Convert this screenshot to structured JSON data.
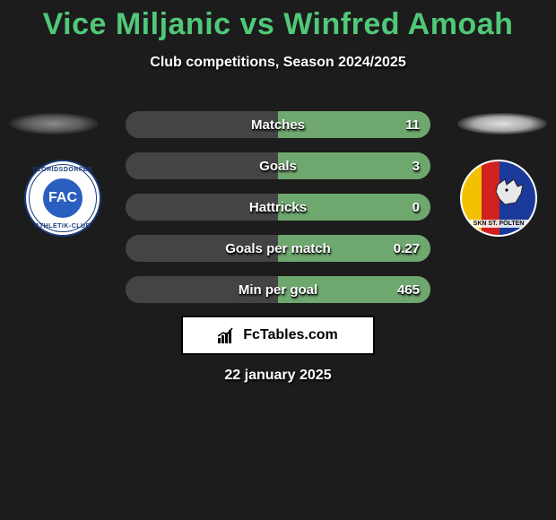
{
  "title": "Vice Miljanic vs Winfred Amoah",
  "subtitle": "Club competitions, Season 2024/2025",
  "date": "22 january 2025",
  "title_color": "#50c878",
  "bar_colors": {
    "left": "#444444",
    "right": "#6fa86f"
  },
  "stats": [
    {
      "label": "Matches",
      "value": "11",
      "left_pct": 50,
      "right_pct": 50
    },
    {
      "label": "Goals",
      "value": "3",
      "left_pct": 50,
      "right_pct": 50
    },
    {
      "label": "Hattricks",
      "value": "0",
      "left_pct": 50,
      "right_pct": 50
    },
    {
      "label": "Goals per match",
      "value": "0.27",
      "left_pct": 50,
      "right_pct": 50
    },
    {
      "label": "Min per goal",
      "value": "465",
      "left_pct": 50,
      "right_pct": 50
    }
  ],
  "club_left": {
    "badge_text": "FAC",
    "top_text": "FLORIDSDORFER",
    "bottom_text": "ATHLETIK-CLUB"
  },
  "club_right": {
    "label_text": "SKN ST. PÖLTEN"
  },
  "fc_tables": {
    "text": "FcTables.com"
  }
}
